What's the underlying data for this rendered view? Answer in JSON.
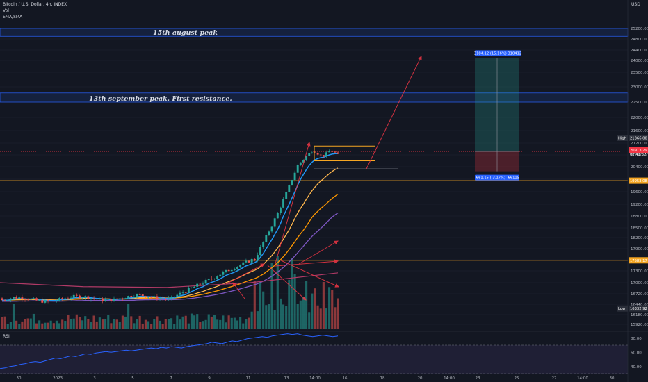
{
  "header": {
    "symbol": "Bitcoin / U.S. Dollar, 4h, INDEX",
    "vol": "Vol",
    "ema": "EMA/SMA",
    "rsi": "RSI",
    "currency": "USD"
  },
  "annotations": {
    "aug_peak": "15th august peak",
    "sep_peak": "13th september peak. First resistance."
  },
  "tags": {
    "high_label": "High",
    "high_value": "21366.00",
    "price_value": "20913.29",
    "price_timer": "02:41:32",
    "level_upper": "19953.08",
    "level_lower": "17585.17",
    "low_label": "Low",
    "low_value": "16332.92",
    "pos_target": "3184.12 (15.16%) 318412",
    "pos_stop": "-661.15 (-3.17%) -66115"
  },
  "colors": {
    "background": "#131722",
    "bull": "#26a69a",
    "bear": "#ef5350",
    "ema_fast": "#2196f3",
    "ema_mid": "#ffb74d",
    "ema_slow": "#ff9800",
    "sma_long": "#7e57c2",
    "level": "#f5a623",
    "zone": "#2962ff",
    "arrow": "#f23645",
    "rsi_line": "#2962ff"
  },
  "chart_data": {
    "type": "candlestick",
    "timeframe": "4h",
    "ylim": [
      15920,
      25600
    ],
    "y_ticks": [
      15920,
      16180,
      16440,
      16720,
      17000,
      17300,
      17600,
      17900,
      18200,
      18500,
      18800,
      19200,
      19600,
      20000,
      20400,
      20800,
      21200,
      21600,
      22000,
      22500,
      23000,
      23500,
      24000,
      24400,
      24800,
      25200
    ],
    "x_tick_labels": [
      "30",
      "2023",
      "3",
      "5",
      "7",
      "9",
      "11",
      "13",
      "14:00",
      "16",
      "18",
      "20",
      "14:00",
      "23",
      "25",
      "27",
      "14:00",
      "30"
    ],
    "resistance_zones": [
      {
        "label_key": "aug_peak",
        "from": 24900,
        "to": 25200
      },
      {
        "label_key": "sep_peak",
        "from": 22500,
        "to": 22800
      }
    ],
    "levels": [
      19953.08,
      17585.17
    ],
    "high": 21366.0,
    "low": 16332.92,
    "last_price": 20913.29,
    "consolidation_box": {
      "top": 21100,
      "bottom": 20600
    },
    "position": {
      "entry": 20913.29,
      "target": 24097.41,
      "stop": 20252.14
    },
    "rsi": {
      "upper": 70,
      "lower": 30,
      "ticks": [
        80,
        60,
        40
      ],
      "values": [
        37,
        38,
        40,
        41,
        43,
        44,
        46,
        47,
        46,
        48,
        50,
        52,
        51,
        53,
        55,
        54,
        56,
        58,
        57,
        59,
        60,
        61,
        60,
        61,
        62,
        63,
        62,
        63,
        64,
        65,
        66,
        65,
        67,
        66,
        68,
        67,
        66,
        68,
        69,
        70,
        71,
        72,
        74,
        73,
        72,
        74,
        76,
        75,
        77,
        79,
        80,
        81,
        82,
        81,
        83,
        84,
        85,
        86,
        85,
        86,
        84,
        83,
        82,
        83,
        84,
        83,
        82,
        83
      ]
    }
  }
}
